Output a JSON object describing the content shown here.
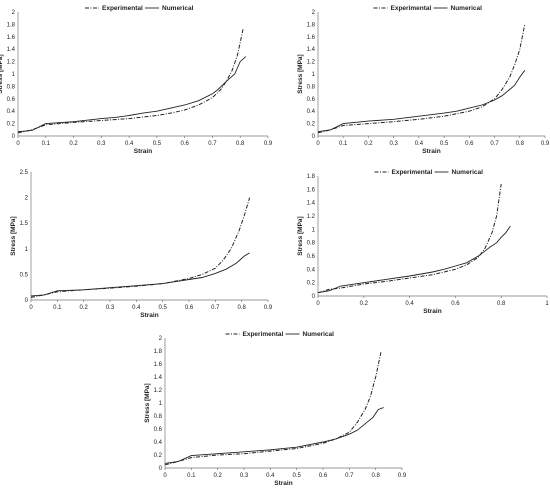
{
  "chart_data": [
    {
      "type": "line",
      "xlabel": "Strain",
      "ylabel": "Stress [MPa]",
      "xlim": [
        0,
        0.9
      ],
      "ylim": [
        0,
        2
      ],
      "xticks": [
        "0",
        "0.1",
        "0.2",
        "0.3",
        "0.4",
        "0.5",
        "0.6",
        "0.7",
        "0.8",
        "0.9"
      ],
      "yticks": [
        "0",
        "0.2",
        "0.4",
        "0.6",
        "0.8",
        "1",
        "1.2",
        "1.4",
        "1.6",
        "1.8",
        "2"
      ],
      "legend": "top-center",
      "series": [
        {
          "name": "Experimental",
          "style": "dashdot",
          "x": [
            0,
            0.05,
            0.1,
            0.2,
            0.3,
            0.4,
            0.5,
            0.55,
            0.6,
            0.65,
            0.7,
            0.73,
            0.75,
            0.77,
            0.79,
            0.81
          ],
          "y": [
            0.05,
            0.1,
            0.18,
            0.22,
            0.25,
            0.28,
            0.33,
            0.37,
            0.42,
            0.5,
            0.62,
            0.75,
            0.88,
            1.05,
            1.3,
            1.72
          ]
        },
        {
          "name": "Numerical",
          "style": "solid",
          "x": [
            0,
            0.05,
            0.1,
            0.2,
            0.3,
            0.35,
            0.4,
            0.45,
            0.5,
            0.55,
            0.6,
            0.65,
            0.7,
            0.72,
            0.75,
            0.78,
            0.8,
            0.82
          ],
          "y": [
            0.07,
            0.09,
            0.2,
            0.23,
            0.28,
            0.3,
            0.33,
            0.37,
            0.4,
            0.45,
            0.5,
            0.57,
            0.68,
            0.75,
            0.88,
            1.0,
            1.2,
            1.28
          ]
        }
      ]
    },
    {
      "type": "line",
      "xlabel": "Strain",
      "ylabel": "Stress [MPa]",
      "xlim": [
        0,
        0.9
      ],
      "ylim": [
        0,
        2
      ],
      "xticks": [
        "0",
        "0.1",
        "0.2",
        "0.3",
        "0.4",
        "0.5",
        "0.6",
        "0.7",
        "0.8",
        "0.9"
      ],
      "yticks": [
        "0",
        "0.2",
        "0.4",
        "0.6",
        "0.8",
        "1",
        "1.2",
        "1.4",
        "1.6",
        "1.8",
        "2"
      ],
      "legend": "top-center",
      "series": [
        {
          "name": "Experimental",
          "style": "dashdot",
          "x": [
            0,
            0.05,
            0.1,
            0.2,
            0.3,
            0.4,
            0.5,
            0.6,
            0.65,
            0.7,
            0.73,
            0.76,
            0.78,
            0.8,
            0.82
          ],
          "y": [
            0.05,
            0.1,
            0.17,
            0.2,
            0.23,
            0.27,
            0.32,
            0.4,
            0.47,
            0.6,
            0.75,
            0.95,
            1.15,
            1.4,
            1.8
          ]
        },
        {
          "name": "Numerical",
          "style": "solid",
          "x": [
            0,
            0.05,
            0.1,
            0.2,
            0.3,
            0.4,
            0.5,
            0.55,
            0.6,
            0.65,
            0.7,
            0.73,
            0.76,
            0.78,
            0.8,
            0.82
          ],
          "y": [
            0.07,
            0.1,
            0.2,
            0.24,
            0.27,
            0.32,
            0.37,
            0.4,
            0.45,
            0.5,
            0.58,
            0.65,
            0.75,
            0.82,
            0.95,
            1.06
          ]
        }
      ]
    },
    {
      "type": "line",
      "xlabel": "Strain",
      "ylabel": "Stress [MPa]",
      "xlim": [
        0,
        0.9
      ],
      "ylim": [
        0,
        2.5
      ],
      "xticks": [
        "0",
        "0.1",
        "0.2",
        "0.3",
        "0.4",
        "0.5",
        "0.6",
        "0.7",
        "0.8",
        "0.9"
      ],
      "yticks": [
        "0",
        "0.5",
        "1",
        "1.5",
        "2",
        "2.5"
      ],
      "legend": "none",
      "series": [
        {
          "name": "Experimental",
          "style": "dashdot",
          "x": [
            0,
            0.05,
            0.1,
            0.2,
            0.3,
            0.4,
            0.5,
            0.6,
            0.65,
            0.7,
            0.73,
            0.76,
            0.79,
            0.81,
            0.83
          ],
          "y": [
            0.05,
            0.1,
            0.16,
            0.2,
            0.23,
            0.27,
            0.32,
            0.42,
            0.5,
            0.62,
            0.78,
            1.0,
            1.35,
            1.65,
            2.0
          ]
        },
        {
          "name": "Numerical",
          "style": "solid",
          "x": [
            0,
            0.05,
            0.1,
            0.2,
            0.3,
            0.4,
            0.5,
            0.55,
            0.6,
            0.65,
            0.7,
            0.74,
            0.78,
            0.81,
            0.83
          ],
          "y": [
            0.08,
            0.1,
            0.18,
            0.2,
            0.24,
            0.28,
            0.32,
            0.36,
            0.4,
            0.44,
            0.52,
            0.6,
            0.72,
            0.86,
            0.92
          ]
        }
      ]
    },
    {
      "type": "line",
      "xlabel": "Strain",
      "ylabel": "Stress [MPa]",
      "xlim": [
        0,
        1
      ],
      "ylim": [
        0,
        1.8
      ],
      "xticks": [
        "0",
        "0.2",
        "0.4",
        "0.6",
        "0.8",
        "1"
      ],
      "yticks": [
        "0",
        "0.2",
        "0.4",
        "0.6",
        "0.8",
        "1",
        "1.2",
        "1.4",
        "1.6",
        "1.8"
      ],
      "legend": "top-center",
      "series": [
        {
          "name": "Experimental",
          "style": "dashdot",
          "x": [
            0,
            0.05,
            0.1,
            0.2,
            0.3,
            0.4,
            0.5,
            0.6,
            0.65,
            0.7,
            0.73,
            0.76,
            0.78,
            0.8
          ],
          "y": [
            0.05,
            0.1,
            0.12,
            0.18,
            0.22,
            0.27,
            0.32,
            0.4,
            0.47,
            0.58,
            0.72,
            0.95,
            1.2,
            1.68
          ]
        },
        {
          "name": "Numerical",
          "style": "solid",
          "x": [
            0,
            0.05,
            0.1,
            0.2,
            0.3,
            0.4,
            0.5,
            0.55,
            0.6,
            0.65,
            0.7,
            0.72,
            0.75,
            0.78,
            0.8,
            0.82,
            0.84
          ],
          "y": [
            0.05,
            0.08,
            0.15,
            0.2,
            0.25,
            0.3,
            0.36,
            0.4,
            0.45,
            0.5,
            0.6,
            0.65,
            0.73,
            0.8,
            0.88,
            0.95,
            1.05
          ]
        }
      ]
    },
    {
      "type": "line",
      "xlabel": "Strain",
      "ylabel": "Stress [MPa]",
      "xlim": [
        0,
        0.9
      ],
      "ylim": [
        0,
        2
      ],
      "xticks": [
        "0",
        "0.1",
        "0.2",
        "0.3",
        "0.4",
        "0.5",
        "0.6",
        "0.7",
        "0.8",
        "0.9"
      ],
      "yticks": [
        "0",
        "0.2",
        "0.4",
        "0.6",
        "0.8",
        "1",
        "1.2",
        "1.4",
        "1.6",
        "1.8",
        "2"
      ],
      "legend": "top-center",
      "series": [
        {
          "name": "Experimental",
          "style": "dashdot",
          "x": [
            0,
            0.05,
            0.1,
            0.2,
            0.3,
            0.4,
            0.5,
            0.6,
            0.65,
            0.7,
            0.73,
            0.76,
            0.78,
            0.8,
            0.82
          ],
          "y": [
            0.05,
            0.1,
            0.16,
            0.2,
            0.22,
            0.26,
            0.3,
            0.38,
            0.45,
            0.55,
            0.7,
            0.9,
            1.1,
            1.4,
            1.78
          ]
        },
        {
          "name": "Numerical",
          "style": "solid",
          "x": [
            0,
            0.05,
            0.1,
            0.2,
            0.3,
            0.4,
            0.5,
            0.55,
            0.6,
            0.65,
            0.7,
            0.73,
            0.76,
            0.79,
            0.81,
            0.83
          ],
          "y": [
            0.07,
            0.1,
            0.19,
            0.22,
            0.25,
            0.28,
            0.32,
            0.36,
            0.4,
            0.45,
            0.52,
            0.58,
            0.68,
            0.78,
            0.9,
            0.93
          ]
        }
      ]
    }
  ]
}
